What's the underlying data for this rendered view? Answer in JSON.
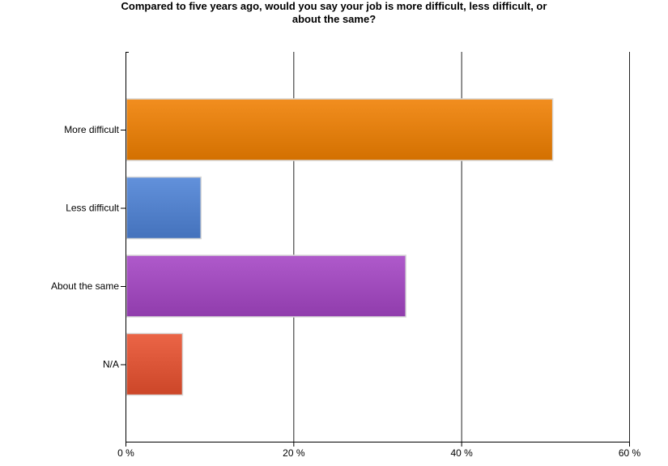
{
  "chart_data": {
    "type": "bar",
    "orientation": "horizontal",
    "title_lines": [
      "Compared to five years ago, would you say your job is more difficult, less difficult, or",
      "about the same?"
    ],
    "categories": [
      "More difficult",
      "Less difficult",
      "About the same",
      "N/A"
    ],
    "values": [
      50.8,
      8.9,
      33.3,
      6.7
    ],
    "colors": [
      "#f07f00",
      "#4d82d6",
      "#a444c4",
      "#e8502e"
    ],
    "xlim": [
      0,
      60
    ],
    "xticks": [
      0,
      20,
      40,
      60
    ],
    "tick_labels": [
      "0 %",
      "20 %",
      "40 %",
      "60 %"
    ],
    "grid": true,
    "legend": "none"
  }
}
